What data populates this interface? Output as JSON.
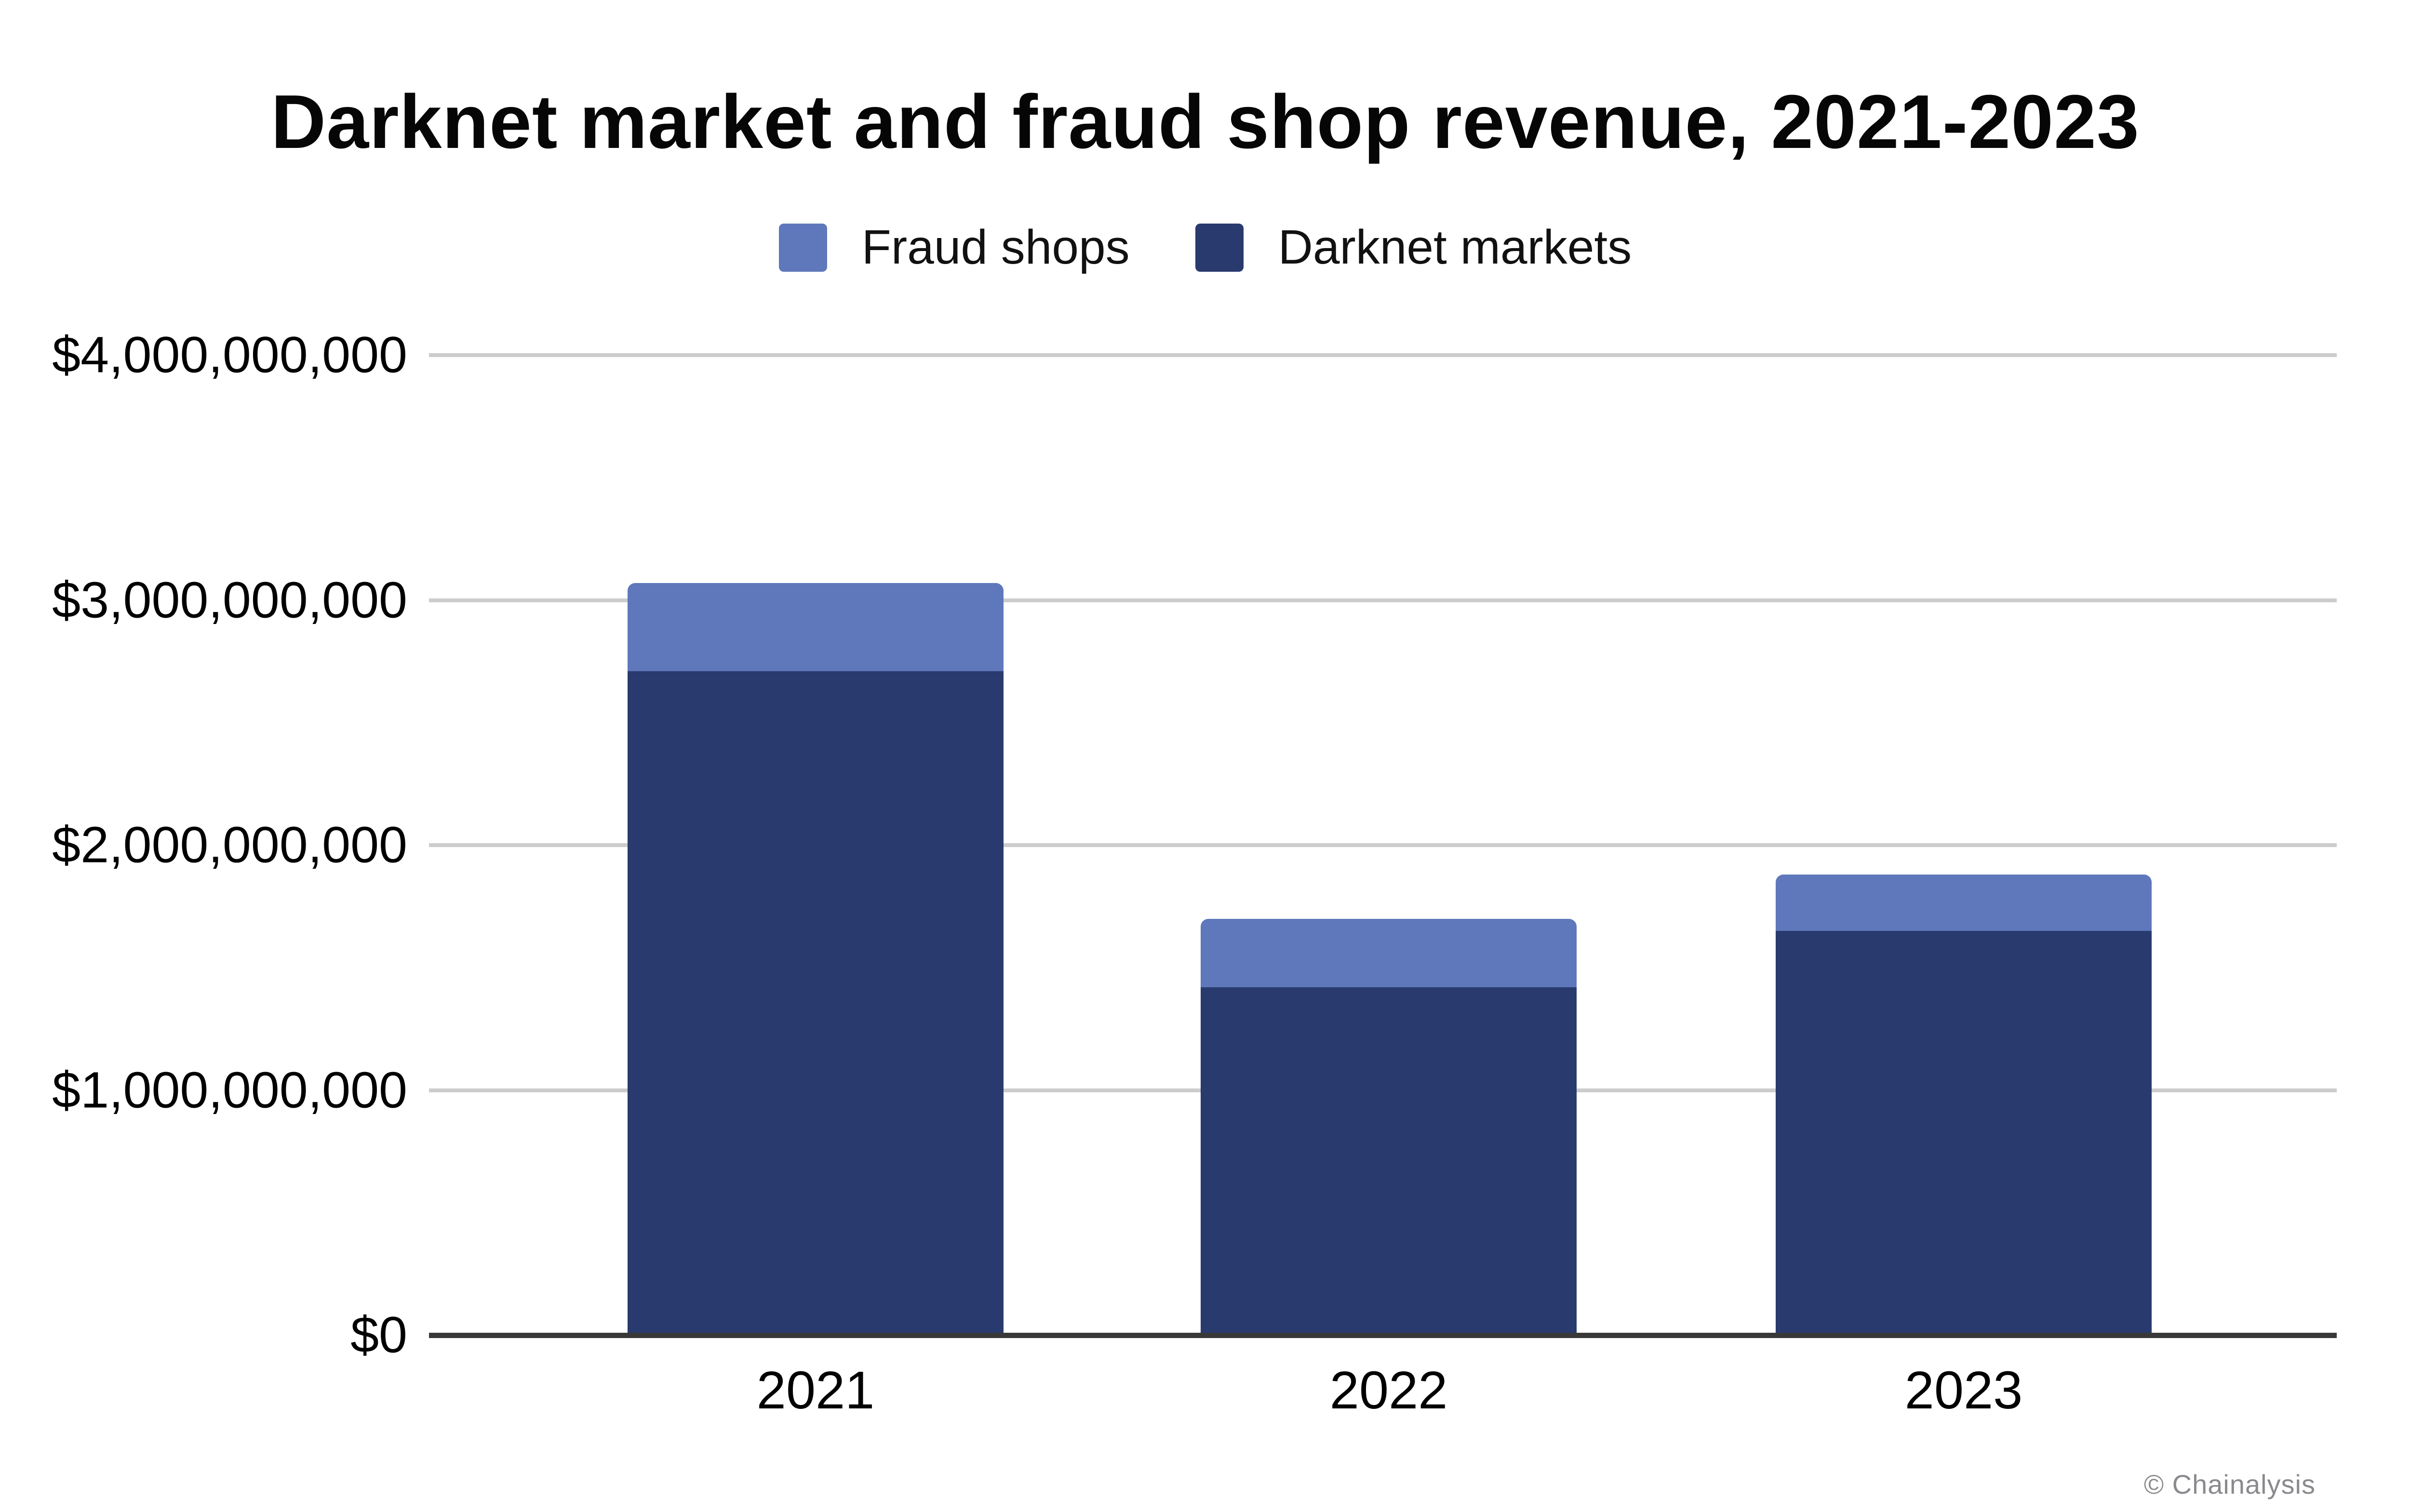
{
  "title": "Darknet market and fraud shop revenue, 2021-2023",
  "watermark": "© Chainalysis",
  "legend": {
    "items": [
      {
        "label": "Fraud shops",
        "color": "#5E78BB"
      },
      {
        "label": "Darknet markets",
        "color": "#293A6E"
      }
    ]
  },
  "colors": {
    "fraud_shops": "#5E78BB",
    "darknet_markets": "#293A6E",
    "gridline": "#CCCCCC",
    "axis_line": "#383838",
    "text": "#000000",
    "watermark": "#8A8A8E",
    "background": "#FFFFFF"
  },
  "chart_data": {
    "type": "bar",
    "stacked": true,
    "title": "Darknet market and fraud shop revenue, 2021-2023",
    "categories": [
      "2021",
      "2022",
      "2023"
    ],
    "series": [
      {
        "name": "Darknet markets",
        "color": "#293A6E",
        "values": [
          2710000000,
          1420000000,
          1650000000
        ]
      },
      {
        "name": "Fraud shops",
        "color": "#5E78BB",
        "values": [
          360000000,
          280000000,
          230000000
        ]
      }
    ],
    "totals": [
      3070000000,
      1700000000,
      1880000000
    ],
    "xlabel": "",
    "ylabel": "",
    "ylim": [
      0,
      4000000000
    ],
    "y_ticks": [
      {
        "value": 4000000000,
        "label": "$4,000,000,000"
      },
      {
        "value": 3000000000,
        "label": "$3,000,000,000"
      },
      {
        "value": 2000000000,
        "label": "$2,000,000,000"
      },
      {
        "value": 1000000000,
        "label": "$1,000,000,000"
      },
      {
        "value": 0,
        "label": "$0"
      }
    ],
    "grid": true,
    "legend_position": "top"
  }
}
